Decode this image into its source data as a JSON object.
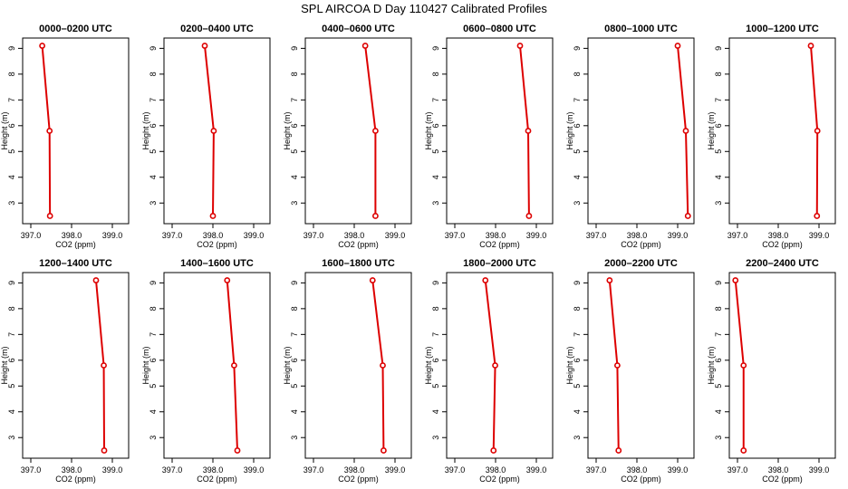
{
  "title": "SPL AIRCOA D  Day 110427  Calibrated Profiles",
  "colors": {
    "series": "#dd0000",
    "axis": "#000000",
    "background": "#ffffff"
  },
  "chart_data": [
    {
      "type": "line",
      "title": "0000–0200 UTC",
      "xlabel": "CO2 (ppm)",
      "ylabel": "Height (m)",
      "xlim": [
        396.8,
        399.4
      ],
      "ylim": [
        2.2,
        9.4
      ],
      "xticks": [
        397.0,
        398.0,
        399.0
      ],
      "xtick_labels": [
        "397.0",
        "398.0",
        "399.0"
      ],
      "yticks": [
        3,
        4,
        5,
        6,
        7,
        8,
        9
      ],
      "ytick_labels": [
        "3",
        "4",
        "5",
        "6",
        "7",
        "8",
        "9"
      ],
      "grid": false,
      "legend": "none",
      "series": [
        {
          "values": [
            [
              397.47,
              2.5
            ],
            [
              397.46,
              5.8
            ],
            [
              397.28,
              9.1
            ]
          ]
        }
      ]
    },
    {
      "type": "line",
      "title": "0200–0400 UTC",
      "xlabel": "CO2 (ppm)",
      "ylabel": "Height (m)",
      "xlim": [
        396.8,
        399.4
      ],
      "ylim": [
        2.2,
        9.4
      ],
      "xticks": [
        397.0,
        398.0,
        399.0
      ],
      "xtick_labels": [
        "397.0",
        "398.0",
        "399.0"
      ],
      "yticks": [
        3,
        4,
        5,
        6,
        7,
        8,
        9
      ],
      "ytick_labels": [
        "3",
        "4",
        "5",
        "6",
        "7",
        "8",
        "9"
      ],
      "grid": false,
      "legend": "none",
      "series": [
        {
          "values": [
            [
              398.0,
              2.5
            ],
            [
              398.02,
              5.8
            ],
            [
              397.8,
              9.1
            ]
          ]
        }
      ]
    },
    {
      "type": "line",
      "title": "0400–0600 UTC",
      "xlabel": "CO2 (ppm)",
      "ylabel": "Height (m)",
      "xlim": [
        396.8,
        399.4
      ],
      "ylim": [
        2.2,
        9.4
      ],
      "xticks": [
        397.0,
        398.0,
        399.0
      ],
      "xtick_labels": [
        "397.0",
        "398.0",
        "399.0"
      ],
      "yticks": [
        3,
        4,
        5,
        6,
        7,
        8,
        9
      ],
      "ytick_labels": [
        "3",
        "4",
        "5",
        "6",
        "7",
        "8",
        "9"
      ],
      "grid": false,
      "legend": "none",
      "series": [
        {
          "values": [
            [
              398.52,
              2.5
            ],
            [
              398.52,
              5.8
            ],
            [
              398.27,
              9.1
            ]
          ]
        }
      ]
    },
    {
      "type": "line",
      "title": "0600–0800 UTC",
      "xlabel": "CO2 (ppm)",
      "ylabel": "Height (m)",
      "xlim": [
        396.8,
        399.4
      ],
      "ylim": [
        2.2,
        9.4
      ],
      "xticks": [
        397.0,
        398.0,
        399.0
      ],
      "xtick_labels": [
        "397.0",
        "398.0",
        "399.0"
      ],
      "yticks": [
        3,
        4,
        5,
        6,
        7,
        8,
        9
      ],
      "ytick_labels": [
        "3",
        "4",
        "5",
        "6",
        "7",
        "8",
        "9"
      ],
      "grid": false,
      "legend": "none",
      "series": [
        {
          "values": [
            [
              398.82,
              2.5
            ],
            [
              398.8,
              5.8
            ],
            [
              398.6,
              9.1
            ]
          ]
        }
      ]
    },
    {
      "type": "line",
      "title": "0800–1000 UTC",
      "xlabel": "CO2 (ppm)",
      "ylabel": "Height (m)",
      "xlim": [
        396.8,
        399.4
      ],
      "ylim": [
        2.2,
        9.4
      ],
      "xticks": [
        397.0,
        398.0,
        399.0
      ],
      "xtick_labels": [
        "397.0",
        "398.0",
        "399.0"
      ],
      "yticks": [
        3,
        4,
        5,
        6,
        7,
        8,
        9
      ],
      "ytick_labels": [
        "3",
        "4",
        "5",
        "6",
        "7",
        "8",
        "9"
      ],
      "grid": false,
      "legend": "none",
      "series": [
        {
          "values": [
            [
              399.25,
              2.5
            ],
            [
              399.2,
              5.8
            ],
            [
              399.0,
              9.1
            ]
          ]
        }
      ]
    },
    {
      "type": "line",
      "title": "1000–1200 UTC",
      "xlabel": "CO2 (ppm)",
      "ylabel": "Height (m)",
      "xlim": [
        396.8,
        399.4
      ],
      "ylim": [
        2.2,
        9.4
      ],
      "xticks": [
        397.0,
        398.0,
        399.0
      ],
      "xtick_labels": [
        "397.0",
        "398.0",
        "399.0"
      ],
      "yticks": [
        3,
        4,
        5,
        6,
        7,
        8,
        9
      ],
      "ytick_labels": [
        "3",
        "4",
        "5",
        "6",
        "7",
        "8",
        "9"
      ],
      "grid": false,
      "legend": "none",
      "series": [
        {
          "values": [
            [
              398.95,
              2.5
            ],
            [
              398.96,
              5.8
            ],
            [
              398.8,
              9.1
            ]
          ]
        }
      ]
    },
    {
      "type": "line",
      "title": "1200–1400 UTC",
      "xlabel": "CO2 (ppm)",
      "ylabel": "Height (m)",
      "xlim": [
        396.8,
        399.4
      ],
      "ylim": [
        2.2,
        9.4
      ],
      "xticks": [
        397.0,
        398.0,
        399.0
      ],
      "xtick_labels": [
        "397.0",
        "398.0",
        "399.0"
      ],
      "yticks": [
        3,
        4,
        5,
        6,
        7,
        8,
        9
      ],
      "ytick_labels": [
        "3",
        "4",
        "5",
        "6",
        "7",
        "8",
        "9"
      ],
      "grid": false,
      "legend": "none",
      "series": [
        {
          "values": [
            [
              398.8,
              2.5
            ],
            [
              398.79,
              5.8
            ],
            [
              398.6,
              9.1
            ]
          ]
        }
      ]
    },
    {
      "type": "line",
      "title": "1400–1600 UTC",
      "xlabel": "CO2 (ppm)",
      "ylabel": "Height (m)",
      "xlim": [
        396.8,
        399.4
      ],
      "ylim": [
        2.2,
        9.4
      ],
      "xticks": [
        397.0,
        398.0,
        399.0
      ],
      "xtick_labels": [
        "397.0",
        "398.0",
        "399.0"
      ],
      "yticks": [
        3,
        4,
        5,
        6,
        7,
        8,
        9
      ],
      "ytick_labels": [
        "3",
        "4",
        "5",
        "6",
        "7",
        "8",
        "9"
      ],
      "grid": false,
      "legend": "none",
      "series": [
        {
          "values": [
            [
              398.6,
              2.5
            ],
            [
              398.52,
              5.8
            ],
            [
              398.35,
              9.1
            ]
          ]
        }
      ]
    },
    {
      "type": "line",
      "title": "1600–1800 UTC",
      "xlabel": "CO2 (ppm)",
      "ylabel": "Height (m)",
      "xlim": [
        396.8,
        399.4
      ],
      "ylim": [
        2.2,
        9.4
      ],
      "xticks": [
        397.0,
        398.0,
        399.0
      ],
      "xtick_labels": [
        "397.0",
        "398.0",
        "399.0"
      ],
      "yticks": [
        3,
        4,
        5,
        6,
        7,
        8,
        9
      ],
      "ytick_labels": [
        "3",
        "4",
        "5",
        "6",
        "7",
        "8",
        "9"
      ],
      "grid": false,
      "legend": "none",
      "series": [
        {
          "values": [
            [
              398.72,
              2.5
            ],
            [
              398.7,
              5.8
            ],
            [
              398.45,
              9.1
            ]
          ]
        }
      ]
    },
    {
      "type": "line",
      "title": "1800–2000 UTC",
      "xlabel": "CO2 (ppm)",
      "ylabel": "Height (m)",
      "xlim": [
        396.8,
        399.4
      ],
      "ylim": [
        2.2,
        9.4
      ],
      "xticks": [
        397.0,
        398.0,
        399.0
      ],
      "xtick_labels": [
        "397.0",
        "398.0",
        "399.0"
      ],
      "yticks": [
        3,
        4,
        5,
        6,
        7,
        8,
        9
      ],
      "ytick_labels": [
        "3",
        "4",
        "5",
        "6",
        "7",
        "8",
        "9"
      ],
      "grid": false,
      "legend": "none",
      "series": [
        {
          "values": [
            [
              397.95,
              2.5
            ],
            [
              397.99,
              5.8
            ],
            [
              397.75,
              9.1
            ]
          ]
        }
      ]
    },
    {
      "type": "line",
      "title": "2000–2200 UTC",
      "xlabel": "CO2 (ppm)",
      "ylabel": "Height (m)",
      "xlim": [
        396.8,
        399.4
      ],
      "ylim": [
        2.2,
        9.4
      ],
      "xticks": [
        397.0,
        398.0,
        399.0
      ],
      "xtick_labels": [
        "397.0",
        "398.0",
        "399.0"
      ],
      "yticks": [
        3,
        4,
        5,
        6,
        7,
        8,
        9
      ],
      "ytick_labels": [
        "3",
        "4",
        "5",
        "6",
        "7",
        "8",
        "9"
      ],
      "grid": false,
      "legend": "none",
      "series": [
        {
          "values": [
            [
              397.55,
              2.5
            ],
            [
              397.52,
              5.8
            ],
            [
              397.33,
              9.1
            ]
          ]
        }
      ]
    },
    {
      "type": "line",
      "title": "2200–2400 UTC",
      "xlabel": "CO2 (ppm)",
      "ylabel": "Height (m)",
      "xlim": [
        396.8,
        399.4
      ],
      "ylim": [
        2.2,
        9.4
      ],
      "xticks": [
        397.0,
        398.0,
        399.0
      ],
      "xtick_labels": [
        "397.0",
        "398.0",
        "399.0"
      ],
      "yticks": [
        3,
        4,
        5,
        6,
        7,
        8,
        9
      ],
      "ytick_labels": [
        "3",
        "4",
        "5",
        "6",
        "7",
        "8",
        "9"
      ],
      "grid": false,
      "legend": "none",
      "series": [
        {
          "values": [
            [
              397.15,
              2.5
            ],
            [
              397.15,
              5.8
            ],
            [
              396.95,
              9.1
            ]
          ]
        }
      ]
    }
  ]
}
